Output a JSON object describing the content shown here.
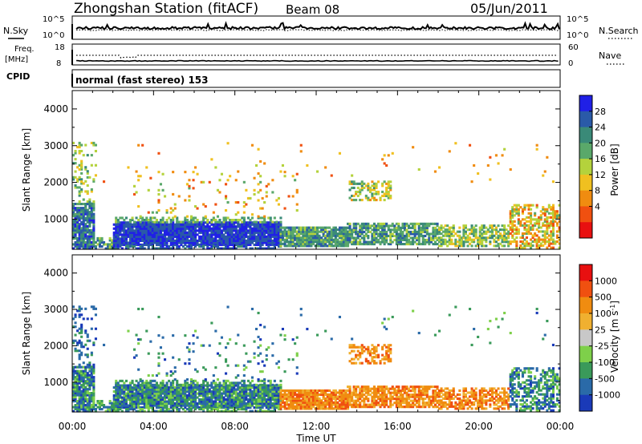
{
  "header": {
    "title": "Zhongshan Station (fitACF)",
    "beam": "Beam 08",
    "date": "05/Jun/2011"
  },
  "left_labels": {
    "nsky": "N.Sky",
    "freq": "Freq.",
    "mhz": "[MHz]",
    "cpid": "CPID"
  },
  "right_labels": {
    "nsearch": "N.Search",
    "nave": "Nave"
  },
  "cpid_text": "normal (fast stereo) 153",
  "colors": {
    "power": [
      "#2020e6",
      "#2a5aa8",
      "#3a8a78",
      "#5aa86a",
      "#b4d23c",
      "#f0c020",
      "#f08c10",
      "#f05010",
      "#e81010"
    ],
    "velocity": [
      "#e81010",
      "#f05010",
      "#f08c10",
      "#f0b030",
      "#c8c8c8",
      "#7ed04a",
      "#3a9a5a",
      "#2a6aa8",
      "#1a3ab8"
    ]
  },
  "chart_data": [
    {
      "type": "line",
      "name": "noise-panel",
      "ylabel_left": "N.Sky",
      "ylabel_right": "N.Search",
      "left_ticks": [
        "10^5",
        "10^0"
      ],
      "right_ticks": [
        "10^5",
        "10^0"
      ]
    },
    {
      "type": "line",
      "name": "frequency-panel",
      "ylabel_left": "Freq. [MHz]",
      "ylabel_right": "Nave",
      "left_ticks": [
        "18",
        "8"
      ],
      "right_ticks": [
        "60",
        "0"
      ]
    },
    {
      "type": "heatmap",
      "name": "power-panel",
      "ylabel": "Slant Range [km]",
      "yticks": [
        "4000",
        "3000",
        "2000",
        "1000"
      ],
      "ylim": [
        180,
        4500
      ],
      "colorbar_label": "Power [dB]",
      "colorbar_ticks": [
        "28",
        "24",
        "20",
        "16",
        "12",
        "8",
        "4"
      ]
    },
    {
      "type": "heatmap",
      "name": "velocity-panel",
      "ylabel": "Slant Range [km]",
      "yticks": [
        "4000",
        "3000",
        "2000",
        "1000"
      ],
      "ylim": [
        180,
        4500
      ],
      "colorbar_label": "Velocity",
      "colorbar_units": "[m s",
      "colorbar_sup": "-1",
      "colorbar_units_end": "]",
      "colorbar_ticks": [
        "1000",
        "500",
        "100",
        "25",
        "-25",
        "-100",
        "-500",
        "-1000"
      ],
      "xlabel": "Time UT",
      "xticks": [
        "00:00",
        "04:00",
        "08:00",
        "12:00",
        "16:00",
        "20:00",
        "00:00"
      ],
      "xlim": [
        0,
        24
      ]
    }
  ]
}
